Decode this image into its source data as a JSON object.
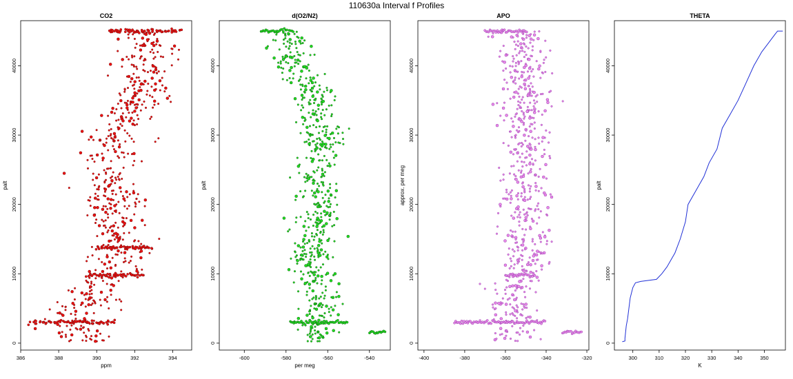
{
  "figure": {
    "title": "110630a   Interval f Profiles"
  },
  "chart_data": [
    {
      "type": "scatter",
      "title": "CO2",
      "xlabel": "ppm",
      "ylabel": "palt",
      "xlim": [
        386,
        395
      ],
      "ylim": [
        -1000,
        46500
      ],
      "xticks": [
        386,
        388,
        390,
        392,
        394
      ],
      "yticks": [
        0,
        10000,
        20000,
        30000,
        40000
      ],
      "series": [
        {
          "fill": "#ee1111",
          "stroke": "#7a1010",
          "profile": [
            [
              0,
              389.6
            ],
            [
              2000,
              389.0
            ],
            [
              4000,
              388.8
            ],
            [
              6000,
              389.6
            ],
            [
              8000,
              389.8
            ],
            [
              9000,
              390.0
            ],
            [
              10000,
              390.9
            ],
            [
              12000,
              391.3
            ],
            [
              14000,
              391.4
            ],
            [
              16000,
              391.0
            ],
            [
              18000,
              390.9
            ],
            [
              20000,
              390.9
            ],
            [
              22000,
              390.7
            ],
            [
              24000,
              390.6
            ],
            [
              26000,
              390.5
            ],
            [
              28000,
              390.9
            ],
            [
              30000,
              391.1
            ],
            [
              32000,
              391.6
            ],
            [
              34000,
              392.0
            ],
            [
              36000,
              392.1
            ],
            [
              38000,
              392.4
            ],
            [
              40000,
              392.6
            ],
            [
              42000,
              392.7
            ],
            [
              44000,
              392.6
            ],
            [
              45000,
              392.7
            ]
          ],
          "spread": 0.75,
          "rows": [
            {
              "y": 45000,
              "x0": 390.6,
              "x1": 394.5
            },
            {
              "y": 3000,
              "x0": 386.5,
              "x1": 391.0
            },
            {
              "y": 9800,
              "x0": 389.5,
              "x1": 392.5
            },
            {
              "y": 13800,
              "x0": 390.0,
              "x1": 393.0
            }
          ]
        }
      ]
    },
    {
      "type": "scatter",
      "title": "d(O2/N2)",
      "xlabel": "per meg",
      "ylabel": "palt",
      "xlim": [
        -612,
        -530
      ],
      "ylim": [
        -1000,
        46500
      ],
      "xticks": [
        -600,
        -580,
        -560,
        -540
      ],
      "yticks": [
        0,
        10000,
        20000,
        30000,
        40000
      ],
      "series": [
        {
          "fill": "#22dd22",
          "stroke": "#116611",
          "profile": [
            [
              0,
              -565
            ],
            [
              2000,
              -566
            ],
            [
              4000,
              -566
            ],
            [
              6000,
              -564
            ],
            [
              8000,
              -566
            ],
            [
              10000,
              -567
            ],
            [
              12000,
              -569
            ],
            [
              14000,
              -568
            ],
            [
              16000,
              -566
            ],
            [
              18000,
              -564
            ],
            [
              20000,
              -565
            ],
            [
              22000,
              -564
            ],
            [
              24000,
              -565
            ],
            [
              26000,
              -563
            ],
            [
              28000,
              -563
            ],
            [
              30000,
              -562
            ],
            [
              32000,
              -565
            ],
            [
              34000,
              -567
            ],
            [
              36000,
              -566
            ],
            [
              38000,
              -571
            ],
            [
              40000,
              -576
            ],
            [
              42000,
              -576
            ],
            [
              44000,
              -578
            ],
            [
              45000,
              -581
            ]
          ],
          "spread": 5,
          "rows": [
            {
              "y": 45000,
              "x0": -592,
              "x1": -576
            },
            {
              "y": 3000,
              "x0": -578,
              "x1": -550
            },
            {
              "y": 1600,
              "x0": -540,
              "x1": -532
            }
          ]
        }
      ]
    },
    {
      "type": "scatter",
      "title": "APO",
      "xlabel": "",
      "ylabel": "approx. per meg",
      "xlim": [
        -403,
        -319
      ],
      "ylim": [
        -1000,
        46500
      ],
      "xticks": [
        -400,
        -380,
        -360,
        -340,
        -320
      ],
      "yticks": [
        0,
        10000,
        20000,
        30000,
        40000
      ],
      "series": [
        {
          "fill": "#e88ae8",
          "stroke": "#9b3fb0",
          "profile": [
            [
              0,
              -358
            ],
            [
              2000,
              -359
            ],
            [
              4000,
              -356
            ],
            [
              6000,
              -356
            ],
            [
              8000,
              -354
            ],
            [
              10000,
              -352
            ],
            [
              14000,
              -350
            ],
            [
              20000,
              -350
            ],
            [
              26000,
              -350
            ],
            [
              32000,
              -351
            ],
            [
              38000,
              -351
            ],
            [
              42000,
              -351
            ],
            [
              45000,
              -352
            ]
          ],
          "spread": 6,
          "rows": [
            {
              "y": 45000,
              "x0": -370,
              "x1": -349
            },
            {
              "y": 3000,
              "x0": -385,
              "x1": -340
            },
            {
              "y": 9800,
              "x0": -360,
              "x1": -345
            },
            {
              "y": 1600,
              "x0": -332,
              "x1": -322
            }
          ]
        }
      ]
    },
    {
      "type": "line",
      "title": "THETA",
      "xlabel": "K",
      "ylabel": "palt",
      "xlim": [
        293,
        358
      ],
      "ylim": [
        -1000,
        46500
      ],
      "xticks": [
        300,
        310,
        320,
        330,
        340,
        350
      ],
      "yticks": [
        0,
        10000,
        20000,
        30000,
        40000
      ],
      "series": [
        {
          "color": "#1f2fd6",
          "points": [
            [
              296,
              200
            ],
            [
              297,
              300
            ],
            [
              297,
              700
            ],
            [
              297.5,
              2500
            ],
            [
              298,
              3500
            ],
            [
              298.5,
              5000
            ],
            [
              299,
              6500
            ],
            [
              300,
              8000
            ],
            [
              301,
              8700
            ],
            [
              303,
              8900
            ],
            [
              305,
              9000
            ],
            [
              309,
              9200
            ],
            [
              311,
              10000
            ],
            [
              313,
              11000
            ],
            [
              316,
              13000
            ],
            [
              318,
              15000
            ],
            [
              320,
              17500
            ],
            [
              321,
              20000
            ],
            [
              324,
              22000
            ],
            [
              327,
              24000
            ],
            [
              329,
              26000
            ],
            [
              332,
              28000
            ],
            [
              334,
              31000
            ],
            [
              337,
              33000
            ],
            [
              340,
              35000
            ],
            [
              343,
              37500
            ],
            [
              346,
              40000
            ],
            [
              349,
              42000
            ],
            [
              352,
              43500
            ],
            [
              354,
              44500
            ],
            [
              355,
              45000
            ],
            [
              357,
              45000
            ]
          ]
        }
      ]
    }
  ]
}
